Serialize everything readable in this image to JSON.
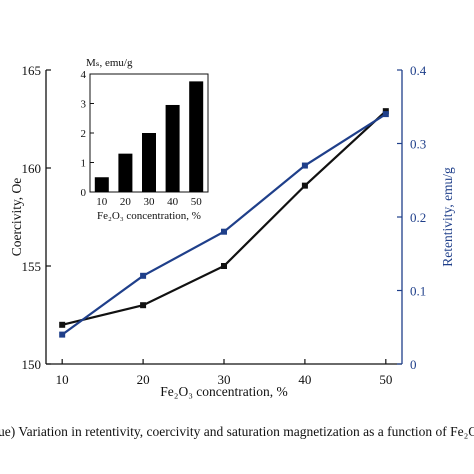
{
  "caption": "ue) Variation in retentivity, coercivity and saturation magnetization as a function of Fe₂O₃ c",
  "chart_data": [
    {
      "type": "line",
      "x": [
        10,
        20,
        30,
        40,
        50
      ],
      "xlabel": "Fe₂O₃ concentration, %",
      "xticks": [
        "10",
        "20",
        "30",
        "40",
        "50"
      ],
      "xlim": [
        8,
        52
      ],
      "left_axis": {
        "label": "Coercivity, Oe",
        "ylim": [
          150,
          165
        ],
        "ticks": [
          "150",
          "155",
          "160",
          "165"
        ]
      },
      "right_axis": {
        "label": "Retentivity, emu/g",
        "ylim": [
          0,
          0.4
        ],
        "ticks": [
          "0",
          "0.1",
          "0.2",
          "0.3",
          "0.4"
        ]
      },
      "series": [
        {
          "axis": "left",
          "color": "#111111",
          "marker": "square",
          "values": [
            152.0,
            153.0,
            155.0,
            159.1,
            162.9
          ]
        },
        {
          "axis": "right",
          "color": "#1f3f8a",
          "marker": "square",
          "values": [
            0.04,
            0.12,
            0.18,
            0.27,
            0.34
          ]
        }
      ],
      "grid": false
    },
    {
      "type": "bar",
      "categories": [
        "10",
        "20",
        "30",
        "40",
        "50"
      ],
      "values": [
        0.5,
        1.3,
        2.0,
        2.95,
        3.75
      ],
      "ylabel": "Mₛ, emu/g",
      "xlabel": "Fe₂O₃ concentration, %",
      "ylim": [
        0,
        4
      ],
      "yticks": [
        "0",
        "1",
        "2",
        "3",
        "4"
      ],
      "color": "#000000"
    }
  ]
}
